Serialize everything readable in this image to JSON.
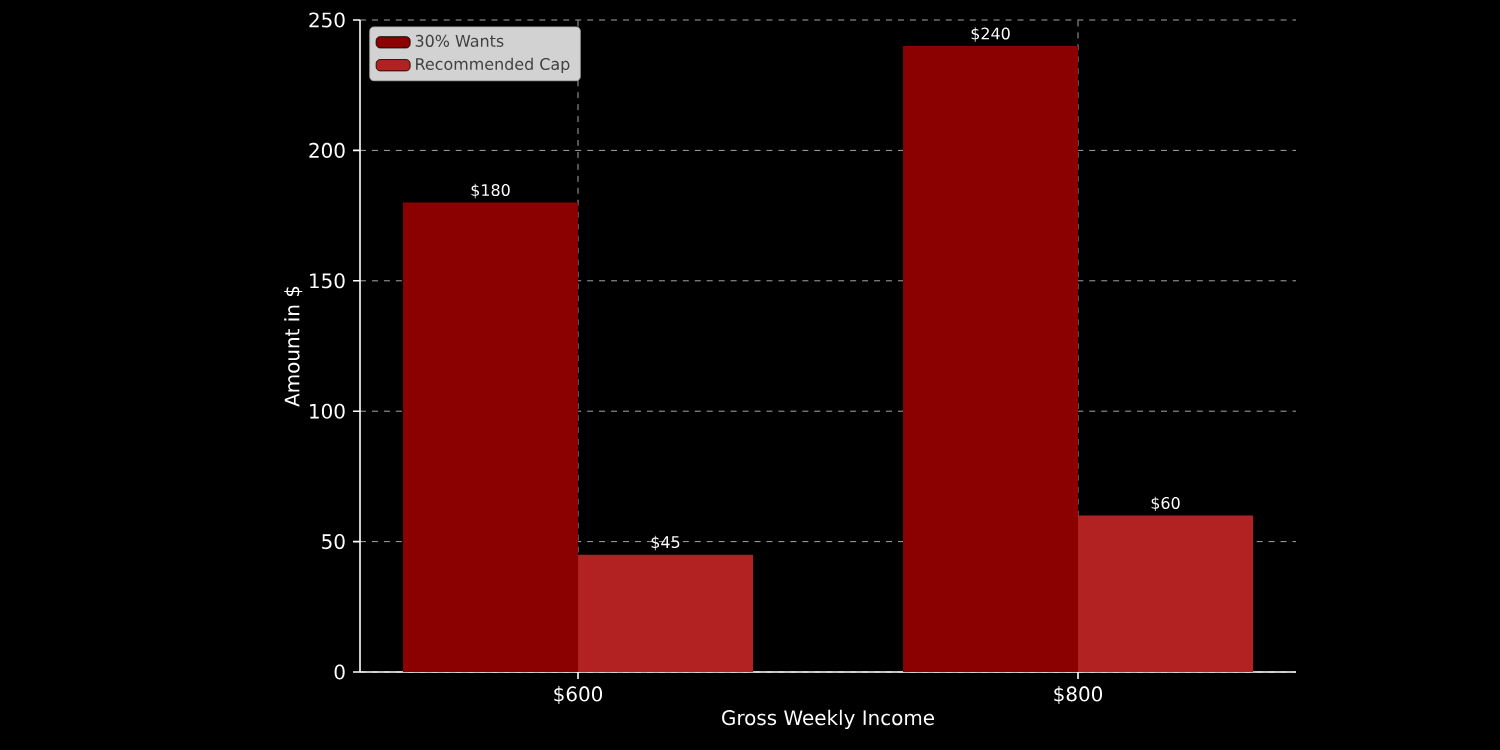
{
  "chart_data": {
    "type": "bar",
    "xlabel": "Gross Weekly Income",
    "ylabel": "Amount in $",
    "categories": [
      "$600",
      "$800"
    ],
    "series": [
      {
        "name": "30% Wants",
        "color": "#8b0000",
        "values": [
          180,
          240
        ],
        "value_labels": [
          "$180",
          "$240"
        ]
      },
      {
        "name": "Recommended Cap",
        "color": "#b22222",
        "values": [
          45,
          60
        ],
        "value_labels": [
          "$45",
          "$60"
        ]
      }
    ],
    "ylim": [
      0,
      250
    ],
    "yticks": [
      0,
      50,
      100,
      150,
      200,
      250
    ],
    "grid": true,
    "legend": "top left"
  }
}
